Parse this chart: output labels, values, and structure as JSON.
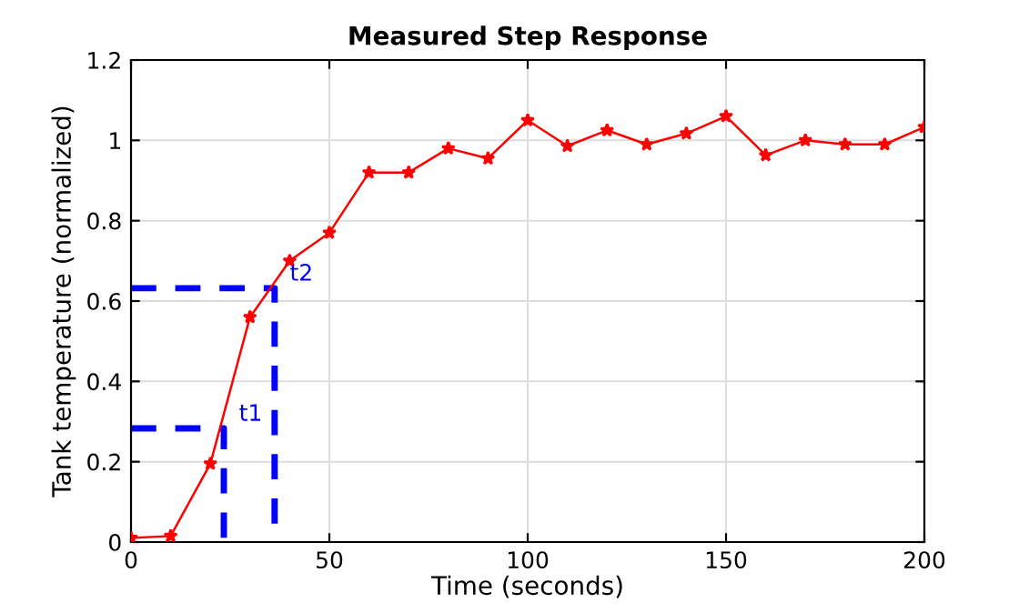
{
  "chart_data": {
    "type": "line",
    "title": "Measured Step Response",
    "xlabel": "Time (seconds)",
    "ylabel": "Tank temperature (normalized)",
    "x": [
      0,
      10,
      20,
      30,
      40,
      50,
      60,
      70,
      80,
      90,
      100,
      110,
      120,
      130,
      140,
      150,
      160,
      170,
      180,
      190,
      200
    ],
    "series": [
      {
        "color": "#ff0000",
        "marker": "star",
        "line_style": "solid",
        "values": [
          0.01,
          0.015,
          0.195,
          0.56,
          0.7,
          0.77,
          0.92,
          0.92,
          0.98,
          0.955,
          1.05,
          0.986,
          1.025,
          0.99,
          1.017,
          1.06,
          0.963,
          1.0,
          0.99,
          0.99,
          1.033
        ]
      },
      {
        "color": "#0000ff",
        "marker": "none",
        "line_style": "dashed",
        "x": [
          0,
          23.4,
          23.4
        ],
        "values": [
          0.283,
          0.283,
          0
        ]
      },
      {
        "color": "#0000ff",
        "marker": "none",
        "line_style": "dashed",
        "x": [
          0,
          36.2,
          36.2
        ],
        "values": [
          0.632,
          0.632,
          0
        ]
      }
    ],
    "annotations": [
      {
        "text": "t1",
        "x": 23.4,
        "y": 0.283
      },
      {
        "text": "t2",
        "x": 36.2,
        "y": 0.632
      }
    ],
    "xlim": [
      0,
      200
    ],
    "ylim": [
      0,
      1.2
    ],
    "xticks": [
      0,
      50,
      100,
      150,
      200
    ],
    "yticks": [
      0,
      0.2,
      0.4,
      0.6,
      0.8,
      1,
      1.2
    ],
    "grid": true
  }
}
